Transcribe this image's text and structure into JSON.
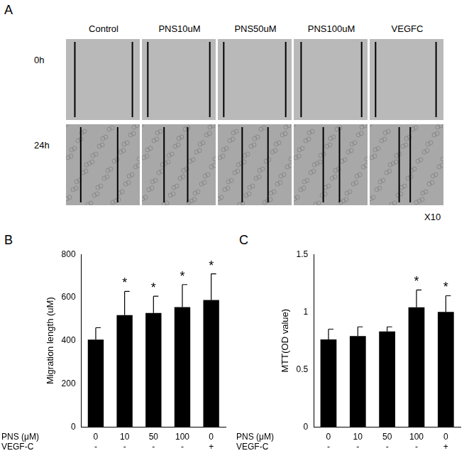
{
  "figure": {
    "panels": [
      "A",
      "B",
      "C"
    ],
    "image_grid": {
      "columns": [
        "Control",
        "PNS10uM",
        "PNS50uM",
        "PNS100uM",
        "VEGFC"
      ],
      "rows": [
        "0h",
        "24h"
      ],
      "magnification": "X10"
    }
  },
  "chart_data": [
    {
      "type": "bar",
      "y_label": "Migration length (uM)",
      "categories": [
        [
          "0",
          "-"
        ],
        [
          "10",
          "-"
        ],
        [
          "50",
          "-"
        ],
        [
          "100",
          "-"
        ],
        [
          "0",
          "+"
        ]
      ],
      "category_rows": [
        "PNS (μM)",
        "VEGF-C"
      ],
      "values": [
        405,
        518,
        528,
        555,
        588
      ],
      "errors": [
        55,
        110,
        78,
        105,
        122
      ],
      "significance": [
        null,
        "*",
        "*",
        "*",
        "*"
      ],
      "color": "#000000",
      "ylim": [
        0,
        800
      ],
      "yticks": [
        0,
        200,
        400,
        600,
        800
      ],
      "grid": false
    },
    {
      "type": "bar",
      "y_label": "MTT(OD value)",
      "categories": [
        [
          "0",
          "-"
        ],
        [
          "10",
          "-"
        ],
        [
          "50",
          "-"
        ],
        [
          "100",
          "-"
        ],
        [
          "0",
          "+"
        ]
      ],
      "category_rows": [
        "PNS (μM)",
        "VEGF-C"
      ],
      "values": [
        0.76,
        0.79,
        0.83,
        1.04,
        1.0
      ],
      "errors": [
        0.09,
        0.08,
        0.04,
        0.15,
        0.14
      ],
      "significance": [
        null,
        null,
        null,
        "*",
        "*"
      ],
      "color": "#000000",
      "ylim": [
        0,
        1.5
      ],
      "yticks": [
        0,
        0.5,
        1,
        1.5
      ],
      "grid": false
    }
  ]
}
